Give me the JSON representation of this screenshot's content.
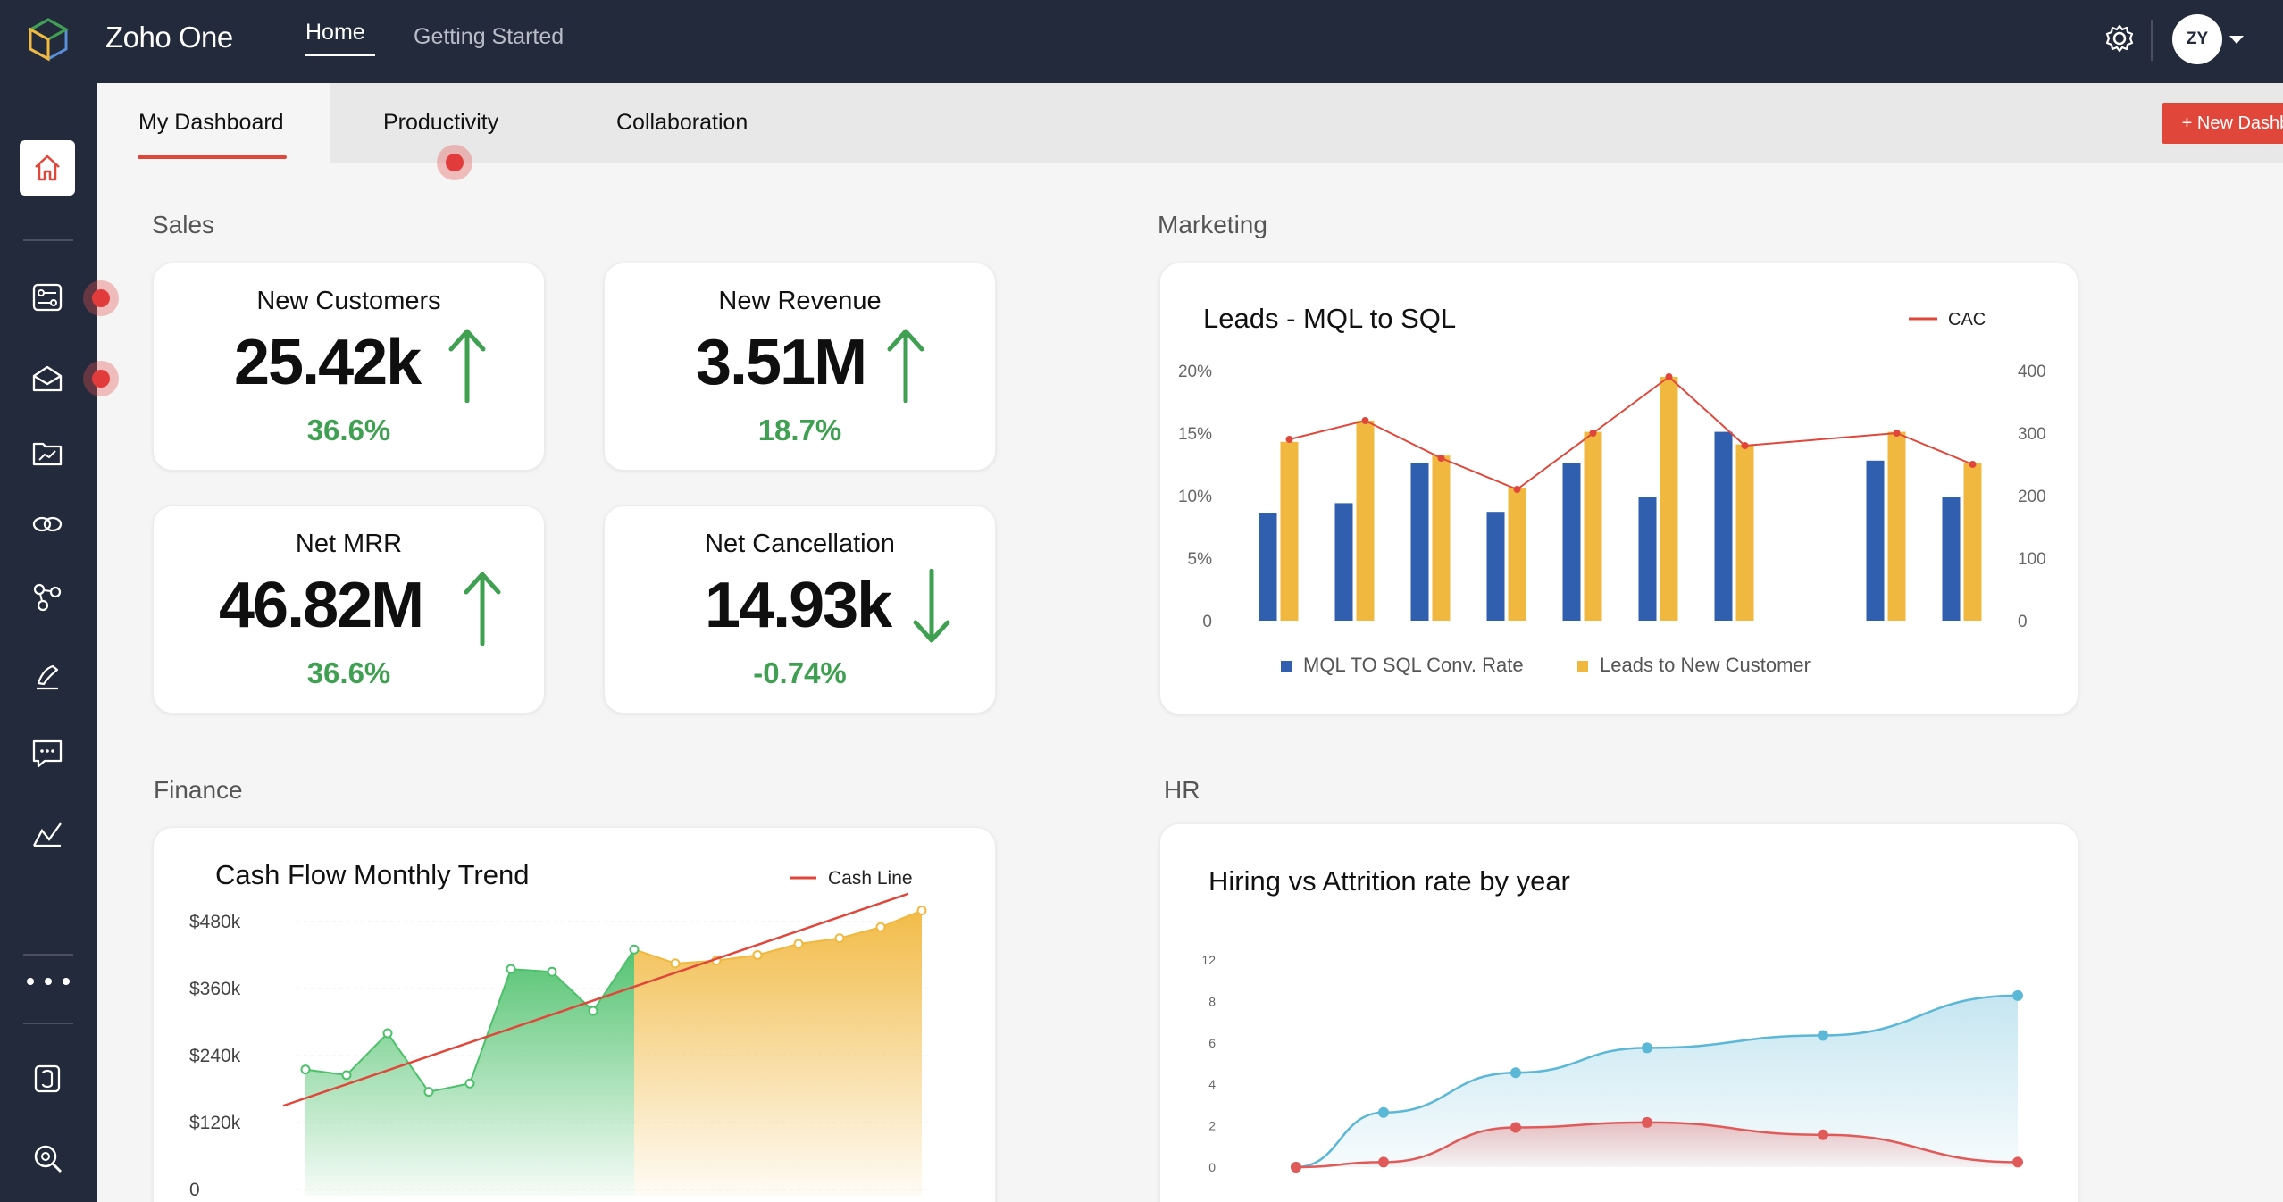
{
  "app": {
    "brand": "Zoho One",
    "nav": {
      "home": "Home",
      "getting_started": "Getting Started"
    },
    "avatar_initials": "ZY"
  },
  "tabs": [
    {
      "label": "My Dashboard",
      "active": true
    },
    {
      "label": "Productivity"
    },
    {
      "label": "Collaboration"
    }
  ],
  "new_dashboard_label": "+ New Dashboard",
  "sections": {
    "sales": "Sales",
    "marketing": "Marketing",
    "finance": "Finance",
    "hr": "HR"
  },
  "kpis": [
    {
      "label": "New Customers",
      "value": "25.42k",
      "change": "36.6%",
      "direction": "up"
    },
    {
      "label": "New Revenue",
      "value": "3.51M",
      "change": "18.7%",
      "direction": "up"
    },
    {
      "label": "Net MRR",
      "value": "46.82M",
      "change": "36.6%",
      "direction": "up"
    },
    {
      "label": "Net Cancellation",
      "value": "14.93k",
      "change": "-0.74%",
      "direction": "down"
    }
  ],
  "colors": {
    "topbar": "#232a3b",
    "accent": "#e0473a",
    "positive": "#3fa052",
    "bar_blue": "#2f5fae",
    "bar_yellow": "#f1b83f",
    "hr_blue": "#5bb7d6",
    "hr_red": "#e05a5a"
  },
  "chart_data": [
    {
      "type": "bar",
      "title": "Leads - MQL to SQL",
      "legend_line": "CAC",
      "y_ticks_left": [
        "20%",
        "15%",
        "10%",
        "5%",
        "0"
      ],
      "y_ticks_right": [
        "400",
        "300",
        "200",
        "100",
        "0"
      ],
      "ylim_left": [
        0,
        20
      ],
      "ylim_right": [
        0,
        400
      ],
      "series": [
        {
          "name": "MQL TO SQL Conv. Rate",
          "values": [
            8.6,
            9.4,
            12.6,
            8.7,
            12.6,
            9.9,
            15.1,
            null,
            12.8,
            9.9
          ]
        },
        {
          "name": "Leads to New Customer",
          "values": [
            14.3,
            16.0,
            13.2,
            10.6,
            15.1,
            19.5,
            14.1,
            null,
            15.1,
            12.6
          ]
        }
      ],
      "line_values": [
        290,
        320,
        260,
        210,
        300,
        390,
        280,
        null,
        300,
        250
      ],
      "legend_placement": "bottom"
    },
    {
      "type": "area",
      "title": "Cash Flow Monthly Trend",
      "legend_line": "Cash Line",
      "y_ticks": [
        "$480k",
        "$360k",
        "$240k",
        "$120k",
        "0"
      ],
      "ylim": [
        0,
        480
      ],
      "values": [
        215,
        205,
        280,
        175,
        190,
        395,
        390,
        320,
        430,
        405,
        410,
        420,
        440,
        450,
        470,
        500
      ],
      "trend_line": [
        150,
        530
      ]
    },
    {
      "type": "line",
      "title": "Hiring vs Attrition rate by year",
      "y_ticks": [
        "12",
        "8",
        "6",
        "4",
        "2",
        "0"
      ],
      "series": [
        {
          "values": [
            0,
            2.2,
            3.8,
            4.8,
            5.3,
            6.9
          ]
        },
        {
          "values": [
            0,
            0.2,
            1.6,
            1.8,
            1.3,
            0.2
          ]
        }
      ]
    }
  ]
}
